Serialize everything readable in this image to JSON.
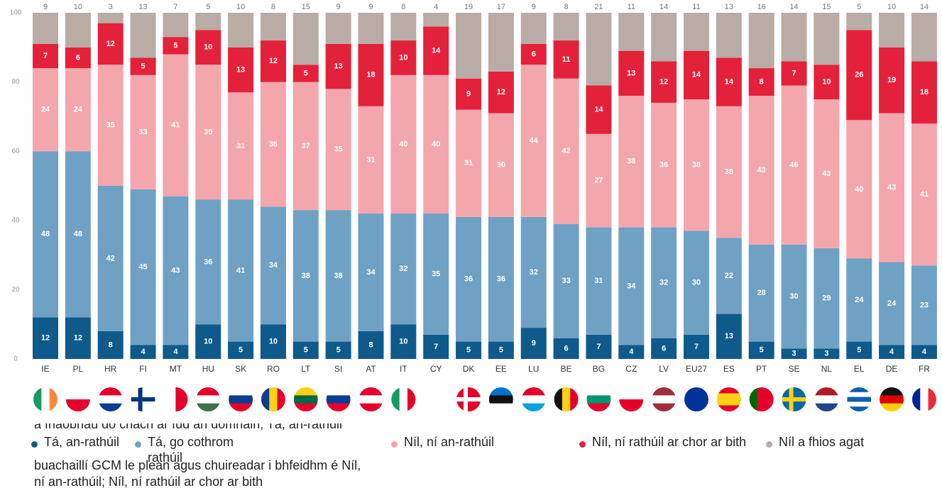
{
  "chart_data": {
    "type": "stacked_bar",
    "categories": [
      "IE",
      "PL",
      "HR",
      "FI",
      "MT",
      "HU",
      "SK",
      "RO",
      "LT",
      "SI",
      "AT",
      "IT",
      "CY",
      "DK",
      "EE",
      "LU",
      "BE",
      "BG",
      "CZ",
      "LV",
      "EU27",
      "ES",
      "PT",
      "SE",
      "NL",
      "EL",
      "DE",
      "FR"
    ],
    "series": [
      {
        "name": "Tá, an-rathúil",
        "color": "#0e5a8a",
        "values": [
          12,
          12,
          8,
          4,
          4,
          10,
          5,
          10,
          5,
          5,
          8,
          10,
          7,
          5,
          5,
          9,
          6,
          7,
          4,
          6,
          7,
          13,
          5,
          3,
          3,
          5,
          4,
          4
        ]
      },
      {
        "name": "Tá, go cothrom rathúil",
        "color": "#6fa1c4",
        "values": [
          48,
          48,
          42,
          45,
          43,
          36,
          41,
          34,
          38,
          38,
          34,
          32,
          35,
          36,
          36,
          32,
          33,
          31,
          34,
          32,
          30,
          22,
          28,
          30,
          29,
          24,
          24,
          23
        ]
      },
      {
        "name": "Níl, ní an-rathúil",
        "color": "#f4a6ad",
        "values": [
          24,
          24,
          35,
          33,
          41,
          39,
          31,
          36,
          37,
          35,
          31,
          40,
          40,
          31,
          30,
          44,
          42,
          27,
          38,
          36,
          38,
          38,
          43,
          46,
          43,
          40,
          43,
          41
        ]
      },
      {
        "name": "Níl, ní rathúil ar chor ar bith",
        "color": "#e4213a",
        "values": [
          7,
          6,
          12,
          5,
          5,
          10,
          13,
          12,
          5,
          13,
          18,
          10,
          14,
          9,
          12,
          6,
          11,
          14,
          13,
          12,
          14,
          14,
          8,
          7,
          10,
          26,
          19,
          18
        ]
      },
      {
        "name": "Níl a fhios agat",
        "color": "#b9aba5",
        "values": [
          9,
          10,
          3,
          13,
          7,
          5,
          10,
          8,
          15,
          9,
          9,
          8,
          4,
          19,
          17,
          9,
          8,
          21,
          11,
          14,
          11,
          13,
          16,
          14,
          15,
          5,
          10,
          14
        ]
      }
    ],
    "ylim": [
      0,
      100
    ],
    "yticks": [
      0,
      20,
      40,
      60,
      80,
      100
    ]
  },
  "background_text": [
    "a fhaobhaú do chách ar fud an domhain; Tá, an-rathúil",
    "buachaillí GCM le plean agus chuireadar i bhfeidhm é Níl,",
    "ní an-rathúil; Níl, ní rathúil ar chor ar bith"
  ]
}
